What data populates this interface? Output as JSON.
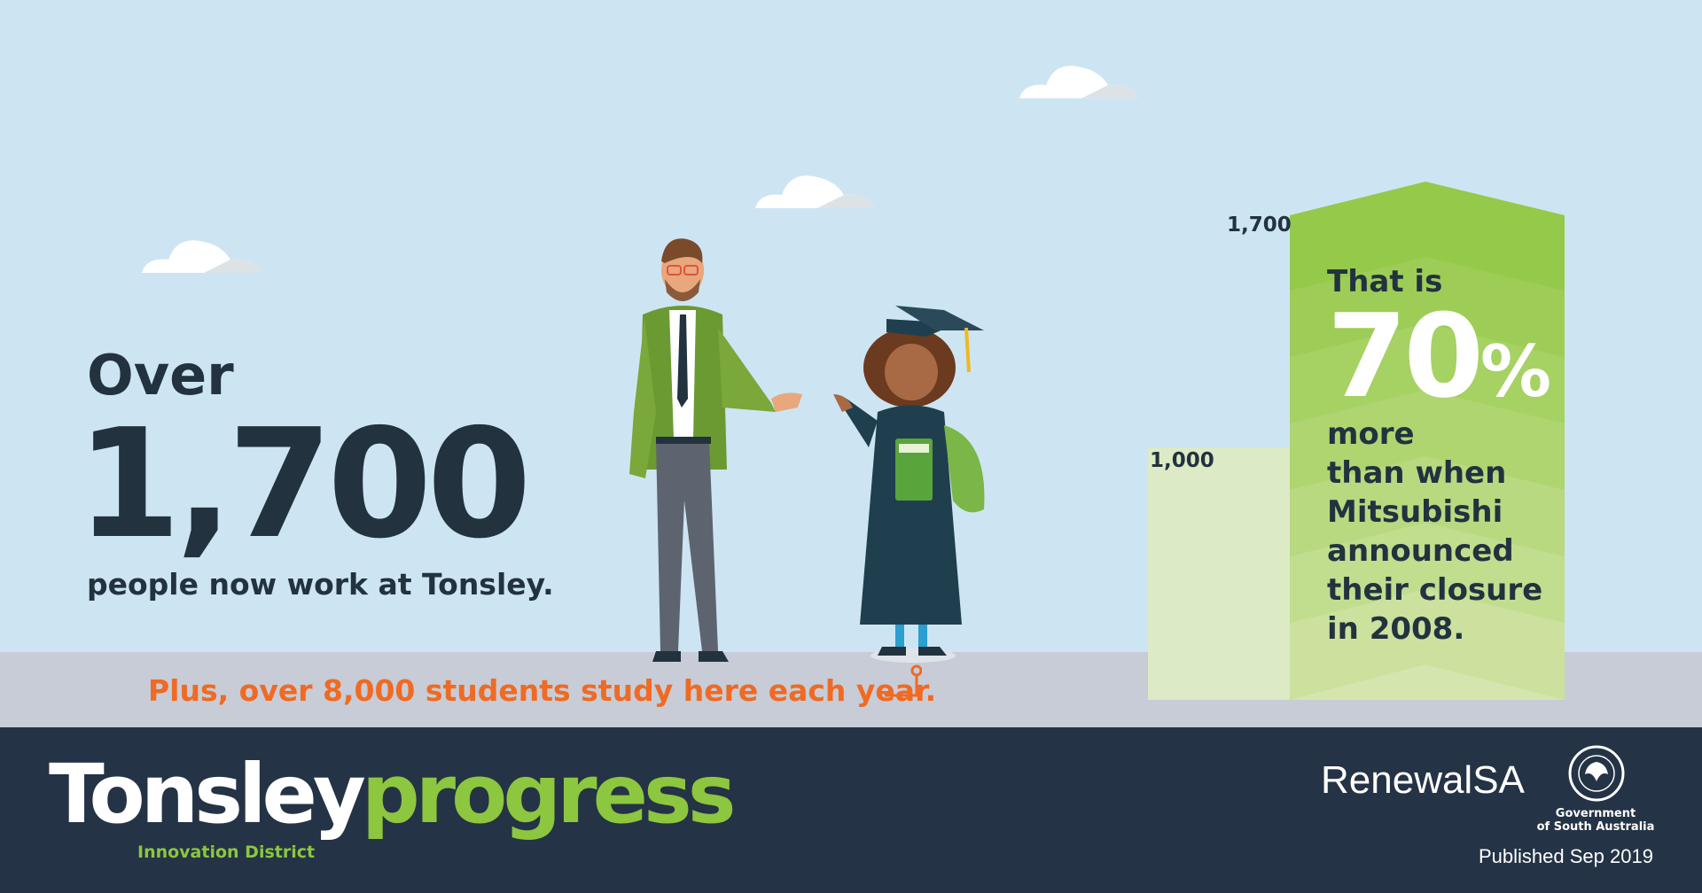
{
  "headline": {
    "over": "Over",
    "number": "1,700",
    "caption": "people now work at Tonsley."
  },
  "students": "Plus, over 8,000 students study here each year.",
  "comparison": {
    "bar_2008_label": "1,000",
    "bar_now_label": "1,700",
    "values": [
      1000,
      1700
    ],
    "that_is": "That is",
    "percent": "70",
    "percent_sign": "%",
    "lines": [
      "more",
      "than when",
      "Mitsubishi",
      "announced",
      "their closure",
      "in 2008."
    ]
  },
  "footer": {
    "logo_part1": "Tonsley",
    "logo_part2": "progress",
    "logo_sub": "Innovation District",
    "renewal": "RenewalSA",
    "seal_text": "SOUTH AUSTRALIA",
    "gov_line1": "Government",
    "gov_line2": "of South Australia",
    "published": "Published Sep 2019"
  },
  "colors": {
    "sky": "#cde5f2",
    "ground": "#c7ccd6",
    "navy": "#243345",
    "green": "#8dc63f",
    "orange": "#f06a23"
  }
}
